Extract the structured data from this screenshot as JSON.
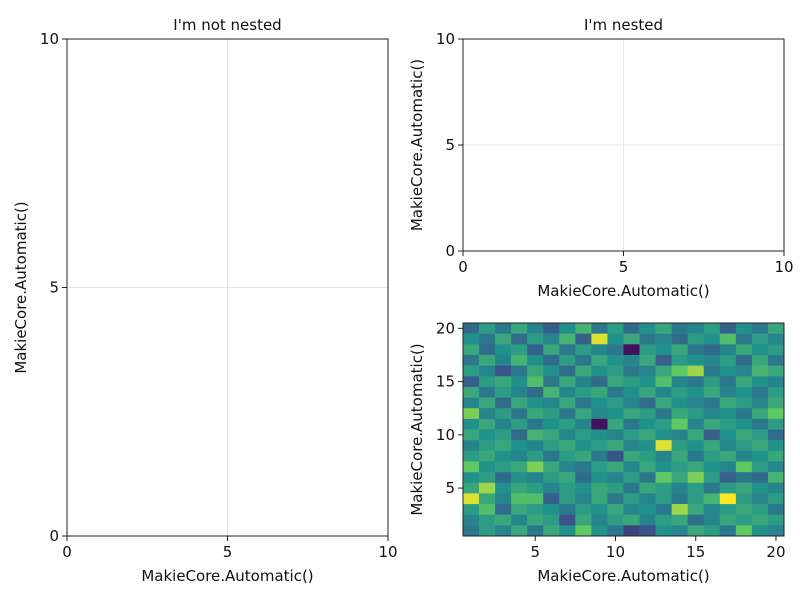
{
  "chart_data": [
    {
      "type": "line",
      "title": "I'm not nested",
      "xlabel": "MakieCore.Automatic()",
      "ylabel": "MakieCore.Automatic()",
      "xlim": [
        0,
        10
      ],
      "ylim": [
        0,
        10
      ],
      "xticks": [
        "0",
        "5",
        "10"
      ],
      "yticks": [
        "0",
        "5",
        "10"
      ],
      "grid": true,
      "series": []
    },
    {
      "type": "line",
      "title": "I'm nested",
      "xlabel": "MakieCore.Automatic()",
      "ylabel": "MakieCore.Automatic()",
      "xlim": [
        0,
        10
      ],
      "ylim": [
        0,
        10
      ],
      "xticks": [
        "0",
        "5",
        "10"
      ],
      "yticks": [
        "0",
        "5",
        "10"
      ],
      "grid": true,
      "series": []
    },
    {
      "type": "heatmap",
      "title": "",
      "xlabel": "MakieCore.Automatic()",
      "ylabel": "MakieCore.Automatic()",
      "xlim": [
        0.5,
        20.5
      ],
      "ylim": [
        0.5,
        20.5
      ],
      "xticks": [
        "5",
        "10",
        "15",
        "20"
      ],
      "yticks": [
        "5",
        "10",
        "15",
        "20"
      ],
      "grid": false,
      "colormap": "viridis",
      "values": [
        [
          0.35,
          0.55,
          0.4,
          0.6,
          0.45,
          0.3,
          0.5,
          0.65,
          0.4,
          0.55,
          0.35,
          0.5,
          0.6,
          0.4,
          0.45,
          0.55,
          0.3,
          0.5,
          0.4,
          0.6
        ],
        [
          0.5,
          0.4,
          0.6,
          0.35,
          0.55,
          0.45,
          0.65,
          0.3,
          0.95,
          0.5,
          0.6,
          0.4,
          0.45,
          0.35,
          0.55,
          0.5,
          0.7,
          0.4,
          0.55,
          0.45
        ],
        [
          0.6,
          0.35,
          0.5,
          0.55,
          0.3,
          0.6,
          0.4,
          0.55,
          0.45,
          0.4,
          0.05,
          0.55,
          0.5,
          0.6,
          0.4,
          0.35,
          0.45,
          0.6,
          0.5,
          0.55
        ],
        [
          0.4,
          0.6,
          0.45,
          0.65,
          0.5,
          0.35,
          0.55,
          0.4,
          0.6,
          0.5,
          0.45,
          0.6,
          0.3,
          0.55,
          0.5,
          0.45,
          0.55,
          0.35,
          0.6,
          0.4
        ],
        [
          0.55,
          0.45,
          0.25,
          0.4,
          0.6,
          0.5,
          0.35,
          0.6,
          0.5,
          0.55,
          0.4,
          0.45,
          0.6,
          0.75,
          0.85,
          0.4,
          0.5,
          0.45,
          0.65,
          0.6
        ],
        [
          0.3,
          0.55,
          0.6,
          0.5,
          0.7,
          0.4,
          0.6,
          0.45,
          0.35,
          0.6,
          0.55,
          0.5,
          0.7,
          0.45,
          0.4,
          0.55,
          0.4,
          0.6,
          0.5,
          0.45
        ],
        [
          0.6,
          0.4,
          0.55,
          0.45,
          0.35,
          0.65,
          0.45,
          0.55,
          0.6,
          0.4,
          0.5,
          0.6,
          0.45,
          0.55,
          0.5,
          0.6,
          0.45,
          0.5,
          0.4,
          0.55
        ],
        [
          0.45,
          0.6,
          0.35,
          0.6,
          0.5,
          0.45,
          0.6,
          0.4,
          0.5,
          0.55,
          0.45,
          0.35,
          0.6,
          0.5,
          0.45,
          0.4,
          0.6,
          0.55,
          0.45,
          0.6
        ],
        [
          0.8,
          0.45,
          0.55,
          0.4,
          0.6,
          0.55,
          0.4,
          0.6,
          0.45,
          0.5,
          0.6,
          0.55,
          0.4,
          0.6,
          0.55,
          0.45,
          0.5,
          0.4,
          0.6,
          0.75
        ],
        [
          0.5,
          0.6,
          0.45,
          0.55,
          0.4,
          0.5,
          0.55,
          0.45,
          0.05,
          0.6,
          0.4,
          0.5,
          0.55,
          0.75,
          0.45,
          0.6,
          0.55,
          0.5,
          0.4,
          0.55
        ],
        [
          0.6,
          0.5,
          0.55,
          0.35,
          0.65,
          0.6,
          0.45,
          0.55,
          0.5,
          0.45,
          0.55,
          0.6,
          0.5,
          0.45,
          0.6,
          0.3,
          0.5,
          0.6,
          0.55,
          0.35
        ],
        [
          0.45,
          0.55,
          0.6,
          0.5,
          0.45,
          0.55,
          0.6,
          0.5,
          0.55,
          0.6,
          0.45,
          0.5,
          0.95,
          0.55,
          0.5,
          0.6,
          0.45,
          0.55,
          0.6,
          0.5
        ],
        [
          0.55,
          0.6,
          0.5,
          0.45,
          0.55,
          0.4,
          0.55,
          0.6,
          0.4,
          0.25,
          0.6,
          0.55,
          0.45,
          0.6,
          0.4,
          0.55,
          0.6,
          0.45,
          0.5,
          0.6
        ],
        [
          0.75,
          0.5,
          0.55,
          0.6,
          0.8,
          0.6,
          0.45,
          0.4,
          0.55,
          0.6,
          0.45,
          0.6,
          0.5,
          0.55,
          0.6,
          0.5,
          0.45,
          0.75,
          0.55,
          0.45
        ],
        [
          0.5,
          0.55,
          0.35,
          0.5,
          0.45,
          0.55,
          0.6,
          0.35,
          0.5,
          0.45,
          0.55,
          0.4,
          0.75,
          0.6,
          0.8,
          0.55,
          0.3,
          0.4,
          0.35,
          0.65
        ],
        [
          0.6,
          0.85,
          0.5,
          0.6,
          0.55,
          0.45,
          0.55,
          0.5,
          0.6,
          0.55,
          0.4,
          0.6,
          0.55,
          0.45,
          0.55,
          0.4,
          0.55,
          0.6,
          0.5,
          0.45
        ],
        [
          0.95,
          0.6,
          0.45,
          0.7,
          0.7,
          0.3,
          0.55,
          0.45,
          0.6,
          0.4,
          0.55,
          0.45,
          0.55,
          0.4,
          0.55,
          0.65,
          1.0,
          0.55,
          0.45,
          0.55
        ],
        [
          0.55,
          0.7,
          0.35,
          0.6,
          0.55,
          0.5,
          0.4,
          0.55,
          0.5,
          0.6,
          0.45,
          0.5,
          0.4,
          0.85,
          0.6,
          0.45,
          0.55,
          0.6,
          0.55,
          0.4
        ],
        [
          0.45,
          0.55,
          0.6,
          0.45,
          0.6,
          0.55,
          0.25,
          0.6,
          0.45,
          0.55,
          0.6,
          0.45,
          0.55,
          0.6,
          0.35,
          0.45,
          0.6,
          0.55,
          0.6,
          0.55
        ],
        [
          0.4,
          0.55,
          0.45,
          0.6,
          0.4,
          0.6,
          0.5,
          0.75,
          0.5,
          0.4,
          0.2,
          0.25,
          0.5,
          0.45,
          0.6,
          0.55,
          0.4,
          0.75,
          0.5,
          0.45
        ]
      ]
    }
  ]
}
